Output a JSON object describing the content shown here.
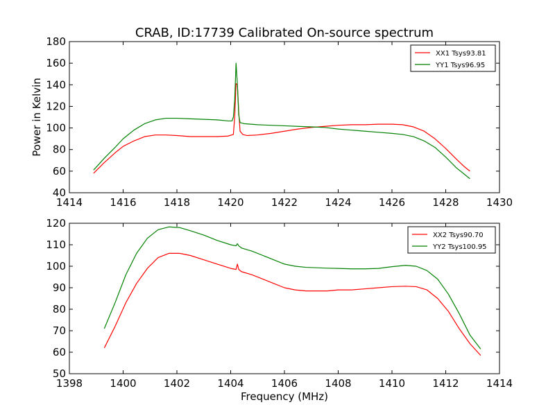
{
  "chart_data": [
    {
      "type": "line",
      "title": "CRAB, ID:17739 Calibrated On-source spectrum",
      "xlabel": "",
      "ylabel": "Power in Kelvin",
      "xlim": [
        1414,
        1430
      ],
      "ylim": [
        40,
        180
      ],
      "xticks": [
        1414,
        1416,
        1418,
        1420,
        1422,
        1424,
        1426,
        1428,
        1430
      ],
      "yticks": [
        40,
        60,
        80,
        100,
        120,
        140,
        160,
        180
      ],
      "legend_position": "top-right",
      "series": [
        {
          "name": "XX1 Tsys93.81",
          "color": "#ff0000",
          "x": [
            1414.9,
            1415.3,
            1415.7,
            1416.0,
            1416.4,
            1416.8,
            1417.2,
            1417.6,
            1418.0,
            1418.5,
            1419.0,
            1419.5,
            1419.9,
            1420.1,
            1420.15,
            1420.2,
            1420.25,
            1420.3,
            1420.35,
            1420.45,
            1420.6,
            1421.0,
            1421.5,
            1422.0,
            1422.5,
            1423.0,
            1423.5,
            1424.0,
            1424.5,
            1425.0,
            1425.5,
            1426.0,
            1426.4,
            1426.8,
            1427.2,
            1427.6,
            1428.0,
            1428.4,
            1428.7,
            1428.9
          ],
          "y": [
            58,
            68,
            77,
            83,
            88,
            92,
            93.5,
            93.5,
            93,
            92,
            92,
            92,
            92.5,
            94,
            110,
            141,
            140,
            115,
            97,
            94,
            93,
            93.5,
            95,
            97,
            99,
            100.5,
            101.5,
            102.5,
            103,
            103,
            103.5,
            103.5,
            103,
            101,
            97,
            90,
            81,
            71,
            64,
            60
          ]
        },
        {
          "name": "YY1 Tsys96.95",
          "color": "#008000",
          "x": [
            1414.9,
            1415.3,
            1415.7,
            1416.0,
            1416.4,
            1416.8,
            1417.2,
            1417.6,
            1418.0,
            1418.5,
            1419.0,
            1419.5,
            1419.9,
            1420.05,
            1420.1,
            1420.15,
            1420.2,
            1420.25,
            1420.3,
            1420.35,
            1420.5,
            1421.0,
            1421.5,
            1422.0,
            1422.5,
            1423.0,
            1423.5,
            1424.0,
            1424.5,
            1425.0,
            1425.5,
            1426.0,
            1426.4,
            1426.8,
            1427.2,
            1427.6,
            1428.0,
            1428.4,
            1428.7,
            1428.9
          ],
          "y": [
            61,
            72,
            82,
            90,
            98,
            104,
            107.5,
            109,
            109,
            108.5,
            108,
            107.5,
            106.5,
            106.5,
            110,
            126,
            160,
            140,
            112,
            105,
            104,
            103,
            102.5,
            102,
            101.5,
            101,
            100.5,
            99,
            98,
            97,
            96,
            95,
            94,
            92,
            88,
            82,
            73,
            63,
            57,
            53
          ]
        }
      ]
    },
    {
      "type": "line",
      "title": "",
      "xlabel": "Frequency (MHz)",
      "ylabel": "",
      "xlim": [
        1398,
        1414
      ],
      "ylim": [
        50,
        120
      ],
      "xticks": [
        1398,
        1400,
        1402,
        1404,
        1406,
        1408,
        1410,
        1412,
        1414
      ],
      "yticks": [
        50,
        60,
        70,
        80,
        90,
        100,
        110,
        120
      ],
      "legend_position": "top-right",
      "series": [
        {
          "name": "XX2 Tsys90.70",
          "color": "#ff0000",
          "x": [
            1399.3,
            1399.7,
            1400.1,
            1400.5,
            1400.9,
            1401.3,
            1401.7,
            1402.1,
            1402.5,
            1403.0,
            1403.5,
            1404.0,
            1404.2,
            1404.25,
            1404.3,
            1404.4,
            1404.8,
            1405.2,
            1405.6,
            1406.0,
            1406.4,
            1406.8,
            1407.2,
            1407.6,
            1408.0,
            1408.5,
            1409.0,
            1409.5,
            1410.0,
            1410.5,
            1410.9,
            1411.3,
            1411.7,
            1412.1,
            1412.5,
            1412.9,
            1413.3
          ],
          "y": [
            62,
            72,
            83,
            92,
            99,
            104,
            106,
            106,
            105,
            103,
            101,
            99,
            98.5,
            101,
            98.5,
            97.5,
            96,
            94,
            92,
            90,
            89,
            88.5,
            88.5,
            88.5,
            89,
            89,
            89.5,
            90,
            90.5,
            90.7,
            90.5,
            89,
            85,
            79,
            71,
            64,
            58.5
          ]
        },
        {
          "name": "YY2 Tsys100.95",
          "color": "#008000",
          "x": [
            1399.3,
            1399.7,
            1400.1,
            1400.5,
            1400.9,
            1401.3,
            1401.7,
            1402.1,
            1402.5,
            1403.0,
            1403.5,
            1404.0,
            1404.2,
            1404.25,
            1404.3,
            1404.4,
            1404.8,
            1405.2,
            1405.6,
            1406.0,
            1406.4,
            1406.8,
            1407.2,
            1407.6,
            1408.0,
            1408.5,
            1409.0,
            1409.5,
            1410.0,
            1410.5,
            1410.9,
            1411.3,
            1411.7,
            1412.1,
            1412.5,
            1412.9,
            1413.3
          ],
          "y": [
            71,
            83,
            96,
            106,
            113,
            117,
            118.3,
            118,
            116.5,
            114.5,
            112,
            110,
            109.5,
            110.5,
            109.5,
            108.5,
            107,
            105,
            103,
            101,
            100,
            99.5,
            99.3,
            99.1,
            99,
            98.8,
            98.8,
            99,
            99.8,
            100.4,
            100,
            98,
            94,
            87,
            78,
            68,
            61.5
          ]
        }
      ]
    }
  ]
}
